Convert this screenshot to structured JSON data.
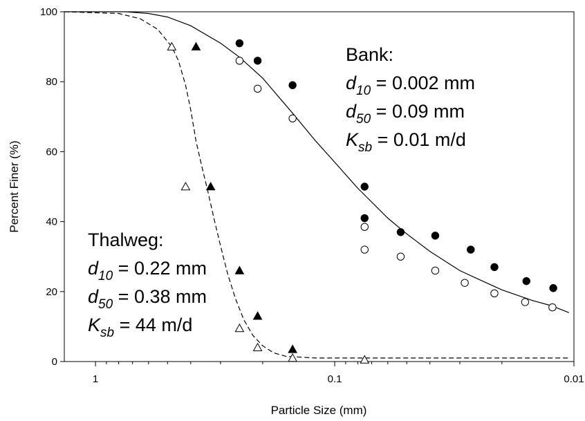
{
  "chart_data": {
    "type": "scatter",
    "xlabel": "Particle Size (mm)",
    "ylabel": "Percent Finer (%)",
    "xscale": "log",
    "xreversed": true,
    "xlim": [
      1.35,
      0.01
    ],
    "ylim": [
      0,
      100
    ],
    "xticks": [
      {
        "value": 1,
        "label": "1"
      },
      {
        "value": 0.1,
        "label": "0.1"
      },
      {
        "value": 0.01,
        "label": "0.01"
      }
    ],
    "yticks": [
      {
        "value": 0,
        "label": "0"
      },
      {
        "value": 20,
        "label": "20"
      },
      {
        "value": 40,
        "label": "40"
      },
      {
        "value": 60,
        "label": "60"
      },
      {
        "value": 80,
        "label": "80"
      },
      {
        "value": 100,
        "label": "100"
      }
    ],
    "series": [
      {
        "marker": "filled-circle",
        "x": [
          0.25,
          0.21,
          0.15,
          0.075,
          0.075,
          0.053,
          0.038,
          0.027,
          0.0215,
          0.0158,
          0.0122
        ],
        "y": [
          91,
          86,
          79,
          50,
          41,
          37,
          36,
          32,
          27,
          23,
          21
        ]
      },
      {
        "marker": "open-circle",
        "x": [
          0.25,
          0.21,
          0.15,
          0.075,
          0.075,
          0.053,
          0.038,
          0.0286,
          0.0215,
          0.016,
          0.0123
        ],
        "y": [
          86,
          78,
          69.5,
          38.5,
          32,
          30,
          26,
          22.5,
          19.5,
          17,
          15.5
        ]
      },
      {
        "marker": "filled-triangle",
        "x": [
          0.38,
          0.33,
          0.25,
          0.21,
          0.15
        ],
        "y": [
          90,
          50,
          26,
          13,
          3.5
        ]
      },
      {
        "marker": "open-triangle",
        "x": [
          0.48,
          0.42,
          0.25,
          0.21,
          0.15,
          0.075
        ],
        "y": [
          90,
          50,
          9.5,
          4,
          1,
          0.5
        ]
      }
    ],
    "curves": [
      {
        "style": "solid",
        "x": [
          1.35,
          0.9,
          0.75,
          0.6,
          0.5,
          0.4,
          0.3,
          0.25,
          0.2,
          0.15,
          0.12,
          0.1,
          0.08,
          0.06,
          0.05,
          0.04,
          0.03,
          0.025,
          0.02,
          0.015,
          0.0125,
          0.0105
        ],
        "y": [
          100,
          100,
          100,
          99.5,
          98.5,
          96,
          91,
          87,
          81,
          71,
          63,
          57,
          49.5,
          41,
          36.5,
          31.5,
          26,
          23.5,
          20.5,
          17.5,
          16,
          14
        ]
      },
      {
        "style": "dashed",
        "x": [
          1.35,
          0.8,
          0.65,
          0.55,
          0.48,
          0.45,
          0.42,
          0.4,
          0.38,
          0.36,
          0.34,
          0.32,
          0.3,
          0.28,
          0.26,
          0.24,
          0.22,
          0.2,
          0.18,
          0.16,
          0.12,
          0.08,
          0.04,
          0.02,
          0.0105
        ],
        "y": [
          100,
          99.5,
          98,
          95,
          90,
          86,
          79,
          72,
          63,
          56,
          49,
          41,
          33,
          25,
          18,
          12,
          7.5,
          4.5,
          2.5,
          1.5,
          1,
          1,
          1,
          1,
          1
        ]
      }
    ],
    "annotations": [
      {
        "name": "bank",
        "lines": [
          {
            "base": "Bank:"
          },
          {
            "base": "d",
            "sub": "10",
            "italic": true,
            "rest": " = 0.002 mm"
          },
          {
            "base": "d",
            "sub": "50",
            "italic": true,
            "rest": " = 0.09 mm"
          },
          {
            "base": "K",
            "sub": "sb",
            "italic": true,
            "rest": " = 0.01 m/d"
          }
        ]
      },
      {
        "name": "thalweg",
        "lines": [
          {
            "base": "Thalweg:"
          },
          {
            "base": "d",
            "sub": "10",
            "italic": true,
            "rest": " = 0.22 mm"
          },
          {
            "base": "d",
            "sub": "50",
            "italic": true,
            "rest": " = 0.38 mm"
          },
          {
            "base": "K",
            "sub": "sb",
            "italic": true,
            "rest": " = 44 m/d"
          }
        ]
      }
    ]
  }
}
